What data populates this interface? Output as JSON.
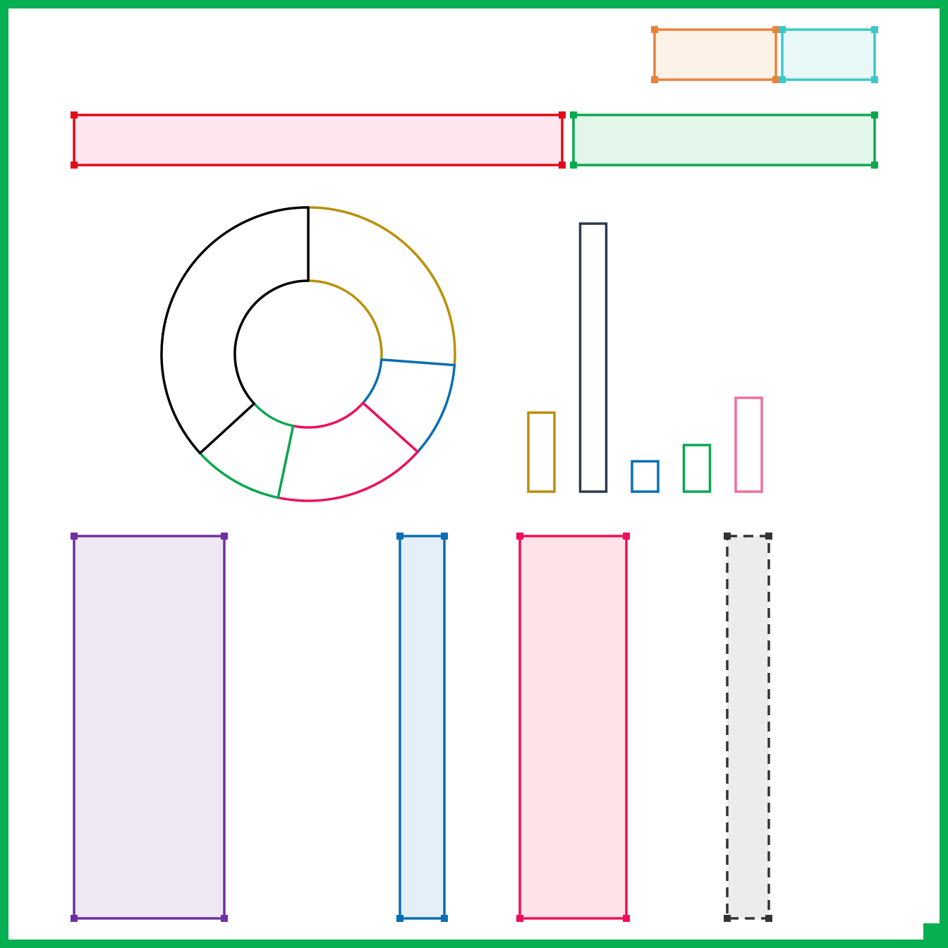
{
  "palette": {
    "frame": "#06af50",
    "orange": "#e8833a",
    "cyan": "#3cc8c8",
    "red": "#e00b18",
    "green": "#0aa84f",
    "purple": "#6e30a0",
    "blue": "#0a6eb4",
    "pink_red": "#ee0f5a",
    "dark_gray": "#333333",
    "gold": "#bb8f0a",
    "slate": "#2f3a4a",
    "pink": "#ef6fa0",
    "black": "#000000"
  },
  "boxes": [
    {
      "id": "orange-box",
      "stroke": "#e8833a",
      "fill": "#fdf2e8",
      "dashed": false
    },
    {
      "id": "cyan-box",
      "stroke": "#3cc8c8",
      "fill": "#e8f8f7",
      "dashed": false
    },
    {
      "id": "red-box",
      "stroke": "#e00b18",
      "fill": "#ffe5ee",
      "dashed": false
    },
    {
      "id": "green-box",
      "stroke": "#0aa84f",
      "fill": "#e3f6ea",
      "dashed": false
    },
    {
      "id": "purple-box",
      "stroke": "#6e30a0",
      "fill": "#efe7f4",
      "dashed": false
    },
    {
      "id": "blue-box",
      "stroke": "#0a6eb4",
      "fill": "#e4eff8",
      "dashed": false
    },
    {
      "id": "pink-box",
      "stroke": "#ee0f5a",
      "fill": "#ffe3e6",
      "dashed": false
    },
    {
      "id": "gray-dashed-box",
      "stroke": "#333333",
      "fill": "#ececec",
      "dashed": true
    }
  ],
  "chart_data": [
    {
      "type": "pie",
      "style": "donut",
      "slices": [
        {
          "color": "#bb8f0a",
          "value": 26.2
        },
        {
          "color": "#0a6eb4",
          "value": 10.4
        },
        {
          "color": "#ee0f5a",
          "value": 16.7
        },
        {
          "color": "#0aa84f",
          "value": 9.9
        },
        {
          "color": "#000000",
          "value": 36.8
        }
      ]
    },
    {
      "type": "bar",
      "style": "outlined",
      "values": [
        112,
        380,
        43,
        66,
        133
      ],
      "colors": [
        "#bb8f0a",
        "#2f3a4a",
        "#0a6eb4",
        "#0aa84f",
        "#ef6fa0"
      ],
      "ylim": [
        0,
        380
      ]
    }
  ]
}
